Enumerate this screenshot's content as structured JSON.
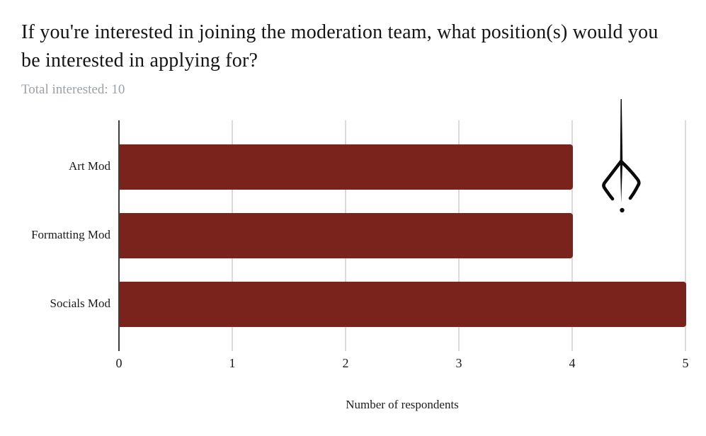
{
  "header": {
    "title": "If you're interested in joining the moderation team, what position(s) would you be interested in applying for?",
    "subtitle": "Total interested: 10"
  },
  "chart_data": {
    "type": "bar",
    "orientation": "horizontal",
    "title": "If you're interested in joining the moderation team, what position(s) would you be interested in applying for?",
    "subtitle": "Total interested: 10",
    "categories": [
      "Art Mod",
      "Formatting Mod",
      "Socials Mod"
    ],
    "values": [
      4,
      4,
      5
    ],
    "xlabel": "Number of respondents",
    "ylabel": "",
    "xlim": [
      0,
      5
    ],
    "xticks": [
      0,
      1,
      2,
      3,
      4,
      5
    ],
    "grid": true,
    "legend": "none",
    "bar_color": "#7a231c"
  },
  "colors": {
    "bar": "#7a231c",
    "axis": "#3d3d3d",
    "gridline": "#dadada",
    "subtitle_text": "#9ba1a6",
    "text": "#1a1a1a"
  },
  "decor": {
    "glyph": "pen-nib-doodle"
  }
}
